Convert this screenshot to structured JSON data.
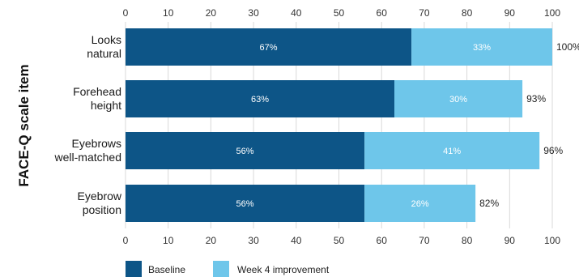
{
  "chart_data": {
    "type": "bar",
    "orientation": "horizontal",
    "stacked": true,
    "ylabel": "FACE-Q scale item",
    "xlim": [
      0,
      100
    ],
    "xticks": [
      0,
      10,
      20,
      30,
      40,
      50,
      60,
      70,
      80,
      90,
      100
    ],
    "xaxis_ticks_top_and_bottom": true,
    "grid": true,
    "legend_position": "bottom",
    "categories": [
      [
        "Looks",
        "natural"
      ],
      [
        "Forehead",
        "height"
      ],
      [
        "Eyebrows",
        "well-matched"
      ],
      [
        "Eyebrow",
        "position"
      ]
    ],
    "series": [
      {
        "name": "Baseline",
        "values": [
          67,
          63,
          56,
          56
        ],
        "labels": [
          "67%",
          "63%",
          "56%",
          "56%"
        ],
        "color": "#0d5587"
      },
      {
        "name": "Week 4 improvement",
        "values": [
          33,
          30,
          41,
          26
        ],
        "labels": [
          "33%",
          "30%",
          "41%",
          "26%"
        ],
        "color": "#6ec6ea"
      }
    ],
    "totals": [
      "100%",
      "93%",
      "96%",
      "82%"
    ]
  }
}
